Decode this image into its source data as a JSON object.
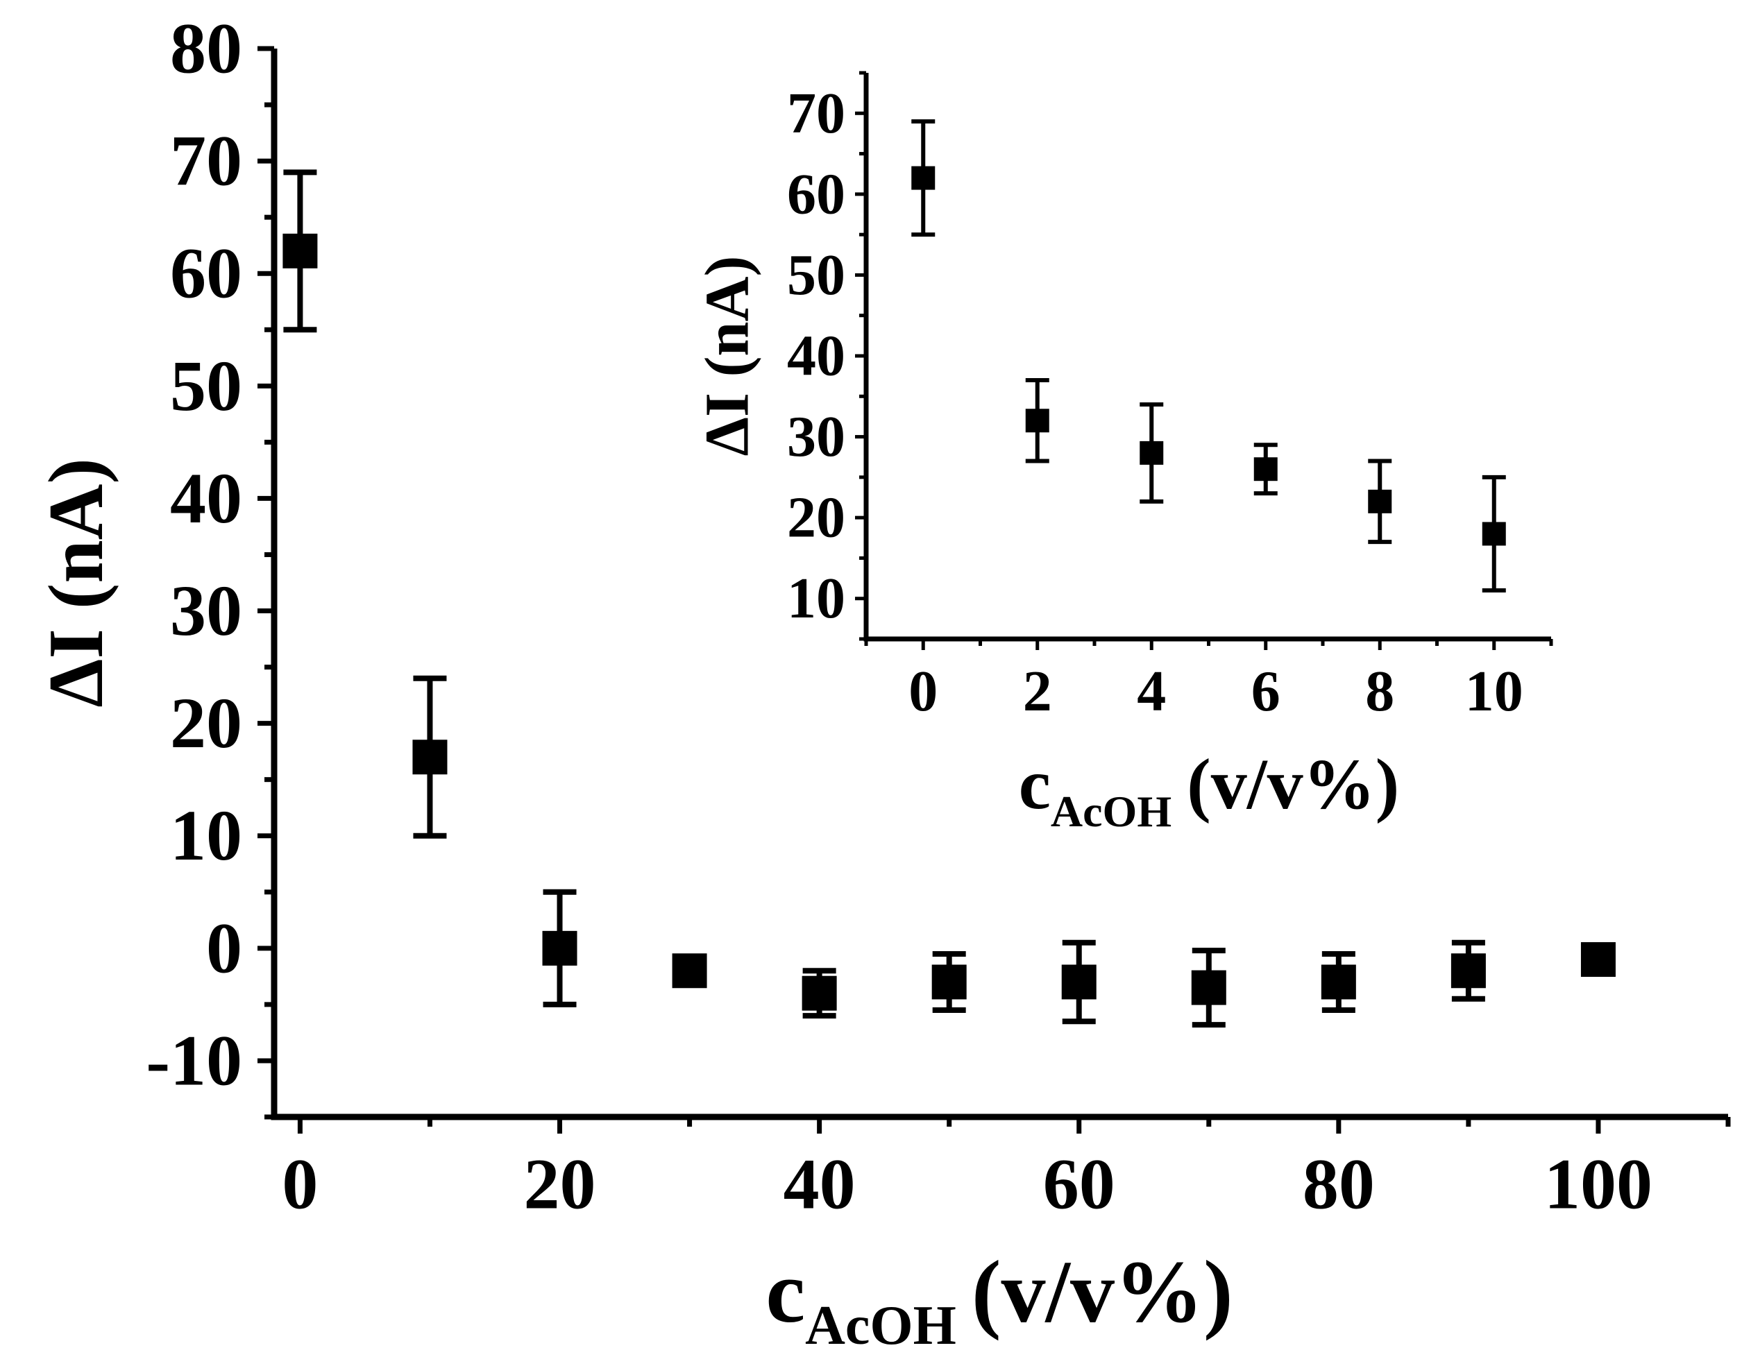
{
  "chart_data": [
    {
      "type": "scatter",
      "xlabel": {
        "main": "c",
        "sub": "AcOH",
        "unit": "(v/v%)"
      },
      "ylabel": "ΔI (nA)",
      "xlim": [
        -2,
        110
      ],
      "ylim": [
        -15,
        80
      ],
      "xticks": [
        0,
        20,
        40,
        60,
        80,
        100
      ],
      "yticks": [
        -10,
        0,
        10,
        20,
        30,
        40,
        50,
        60,
        70,
        80
      ],
      "grid": false,
      "legend": "none",
      "marker_color": "#000000",
      "points": [
        {
          "x": 0,
          "y": 62,
          "err": 7
        },
        {
          "x": 10,
          "y": 17,
          "err": 7
        },
        {
          "x": 20,
          "y": 0,
          "err": 5
        },
        {
          "x": 30,
          "y": -2,
          "err": 0.8
        },
        {
          "x": 40,
          "y": -4,
          "err": 2
        },
        {
          "x": 50,
          "y": -3,
          "err": 2.5
        },
        {
          "x": 60,
          "y": -3,
          "err": 3.5
        },
        {
          "x": 70,
          "y": -3.5,
          "err": 3.3
        },
        {
          "x": 80,
          "y": -3,
          "err": 2.5
        },
        {
          "x": 90,
          "y": -2,
          "err": 2.5
        },
        {
          "x": 100,
          "y": -1,
          "err": 0.7
        }
      ]
    },
    {
      "type": "scatter",
      "xlabel": {
        "main": "c",
        "sub": "AcOH",
        "unit": "(v/v%)"
      },
      "ylabel": "ΔI (nA)",
      "xlim": [
        -1,
        11
      ],
      "ylim": [
        5,
        75
      ],
      "xticks": [
        0,
        2,
        4,
        6,
        8,
        10
      ],
      "yticks": [
        10,
        20,
        30,
        40,
        50,
        60,
        70
      ],
      "grid": false,
      "legend": "none",
      "marker_color": "#000000",
      "points": [
        {
          "x": 0,
          "y": 62,
          "err": 7
        },
        {
          "x": 2,
          "y": 32,
          "err": 5
        },
        {
          "x": 4,
          "y": 28,
          "err": 6
        },
        {
          "x": 6,
          "y": 26,
          "err": 3
        },
        {
          "x": 8,
          "y": 22,
          "err": 5
        },
        {
          "x": 10,
          "y": 18,
          "err": 7
        }
      ]
    }
  ]
}
